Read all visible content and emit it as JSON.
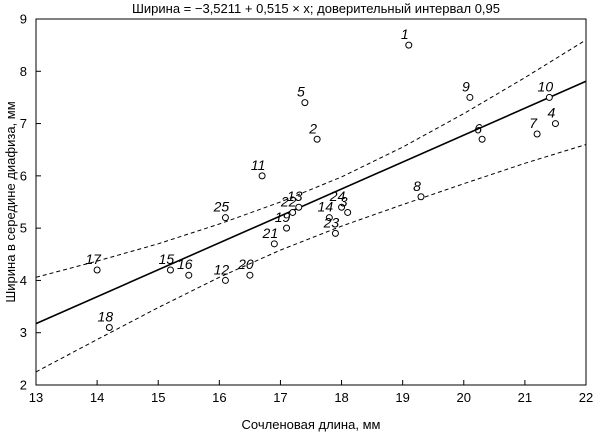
{
  "chart_data": {
    "type": "scatter",
    "title": "Ширина = −3,5211 + 0,515 × x; доверительный интервал 0,95",
    "xlabel": "Сочленовая длина, мм",
    "ylabel": "Ширина в середине диафиза, мм",
    "xlim": [
      13,
      22
    ],
    "ylim": [
      2,
      9
    ],
    "xticks": [
      "13",
      "14",
      "15",
      "16",
      "17",
      "18",
      "19",
      "20",
      "21",
      "22"
    ],
    "yticks": [
      "2",
      "3",
      "4",
      "5",
      "6",
      "7",
      "8",
      "9"
    ],
    "grid": false,
    "regression": {
      "intercept": -3.5211,
      "slope": 0.515
    },
    "confidence_band": {
      "upper": [
        [
          13,
          4.06
        ],
        [
          14,
          4.37
        ],
        [
          15,
          4.7
        ],
        [
          16,
          5.08
        ],
        [
          17,
          5.5
        ],
        [
          18,
          5.98
        ],
        [
          19,
          6.55
        ],
        [
          20,
          7.19
        ],
        [
          21,
          7.88
        ],
        [
          22,
          8.6
        ]
      ],
      "lower": [
        [
          13,
          2.25
        ],
        [
          14,
          2.87
        ],
        [
          15,
          3.48
        ],
        [
          16,
          4.06
        ],
        [
          17,
          4.58
        ],
        [
          18,
          5.04
        ],
        [
          19,
          5.45
        ],
        [
          20,
          5.85
        ],
        [
          21,
          6.24
        ],
        [
          22,
          6.6
        ]
      ]
    },
    "points": [
      {
        "label": "1",
        "x": 19.1,
        "y": 8.5
      },
      {
        "label": "2",
        "x": 17.6,
        "y": 6.7
      },
      {
        "label": "3",
        "x": 18.1,
        "y": 5.3
      },
      {
        "label": "4",
        "x": 21.5,
        "y": 7.0
      },
      {
        "label": "5",
        "x": 17.4,
        "y": 7.4
      },
      {
        "label": "6",
        "x": 20.3,
        "y": 6.7
      },
      {
        "label": "7",
        "x": 21.2,
        "y": 6.8
      },
      {
        "label": "8",
        "x": 19.3,
        "y": 5.6
      },
      {
        "label": "9",
        "x": 20.1,
        "y": 7.5
      },
      {
        "label": "10",
        "x": 21.4,
        "y": 7.5
      },
      {
        "label": "11",
        "x": 16.7,
        "y": 6.0
      },
      {
        "label": "12",
        "x": 16.1,
        "y": 4.0
      },
      {
        "label": "13",
        "x": 17.3,
        "y": 5.4
      },
      {
        "label": "14",
        "x": 17.8,
        "y": 5.2
      },
      {
        "label": "15",
        "x": 15.2,
        "y": 4.2
      },
      {
        "label": "16",
        "x": 15.5,
        "y": 4.1
      },
      {
        "label": "17",
        "x": 14.0,
        "y": 4.2
      },
      {
        "label": "18",
        "x": 14.2,
        "y": 3.1
      },
      {
        "label": "19",
        "x": 17.1,
        "y": 5.0
      },
      {
        "label": "20",
        "x": 16.5,
        "y": 4.1
      },
      {
        "label": "21",
        "x": 16.9,
        "y": 4.7
      },
      {
        "label": "22",
        "x": 17.2,
        "y": 5.3
      },
      {
        "label": "23",
        "x": 17.9,
        "y": 4.9
      },
      {
        "label": "24",
        "x": 18.0,
        "y": 5.4
      },
      {
        "label": "25",
        "x": 16.1,
        "y": 5.2
      }
    ]
  }
}
